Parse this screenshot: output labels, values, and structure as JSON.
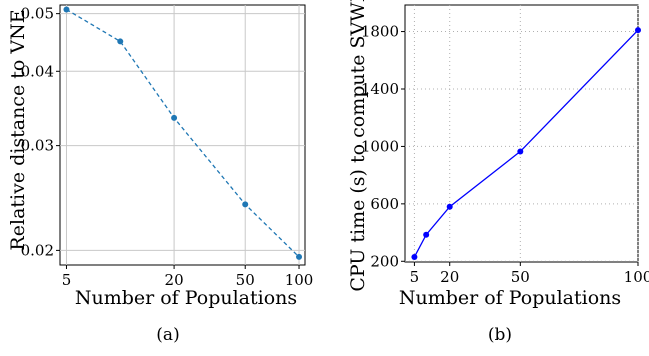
{
  "chart_data": [
    {
      "type": "line",
      "caption": "(a)",
      "xlabel": "Number of Populations",
      "ylabel": "Relative distance to VNE",
      "xscale": "log",
      "yscale": "log",
      "xlim": [
        4.6,
        108
      ],
      "ylim": [
        0.0189,
        0.0517
      ],
      "xticks": [
        5,
        20,
        50,
        100
      ],
      "yticks": [
        0.02,
        0.03,
        0.04,
        0.05
      ],
      "yticklabels": [
        "0.02",
        "0.03",
        "0.04",
        "0.05"
      ],
      "grid": true,
      "color": "#1f77b4",
      "linestyle": "dashed",
      "x": [
        5,
        10,
        20,
        50,
        100
      ],
      "y": [
        0.0508,
        0.0449,
        0.0334,
        0.0239,
        0.0195
      ]
    },
    {
      "type": "line",
      "caption": "(b)",
      "xlabel": "Number of Populations",
      "ylabel": "CPU time (s) to compute SVWE",
      "xscale": "linear",
      "yscale": "linear",
      "xlim": [
        1,
        100
      ],
      "ylim": [
        195,
        1985
      ],
      "xticks": [
        5,
        20,
        50,
        100
      ],
      "yticks": [
        200,
        600,
        1000,
        1400,
        1800
      ],
      "grid": true,
      "color": "#0000ff",
      "linestyle": "solid",
      "x": [
        5,
        10,
        20,
        50,
        100
      ],
      "y": [
        230,
        385,
        580,
        965,
        1810
      ]
    }
  ]
}
